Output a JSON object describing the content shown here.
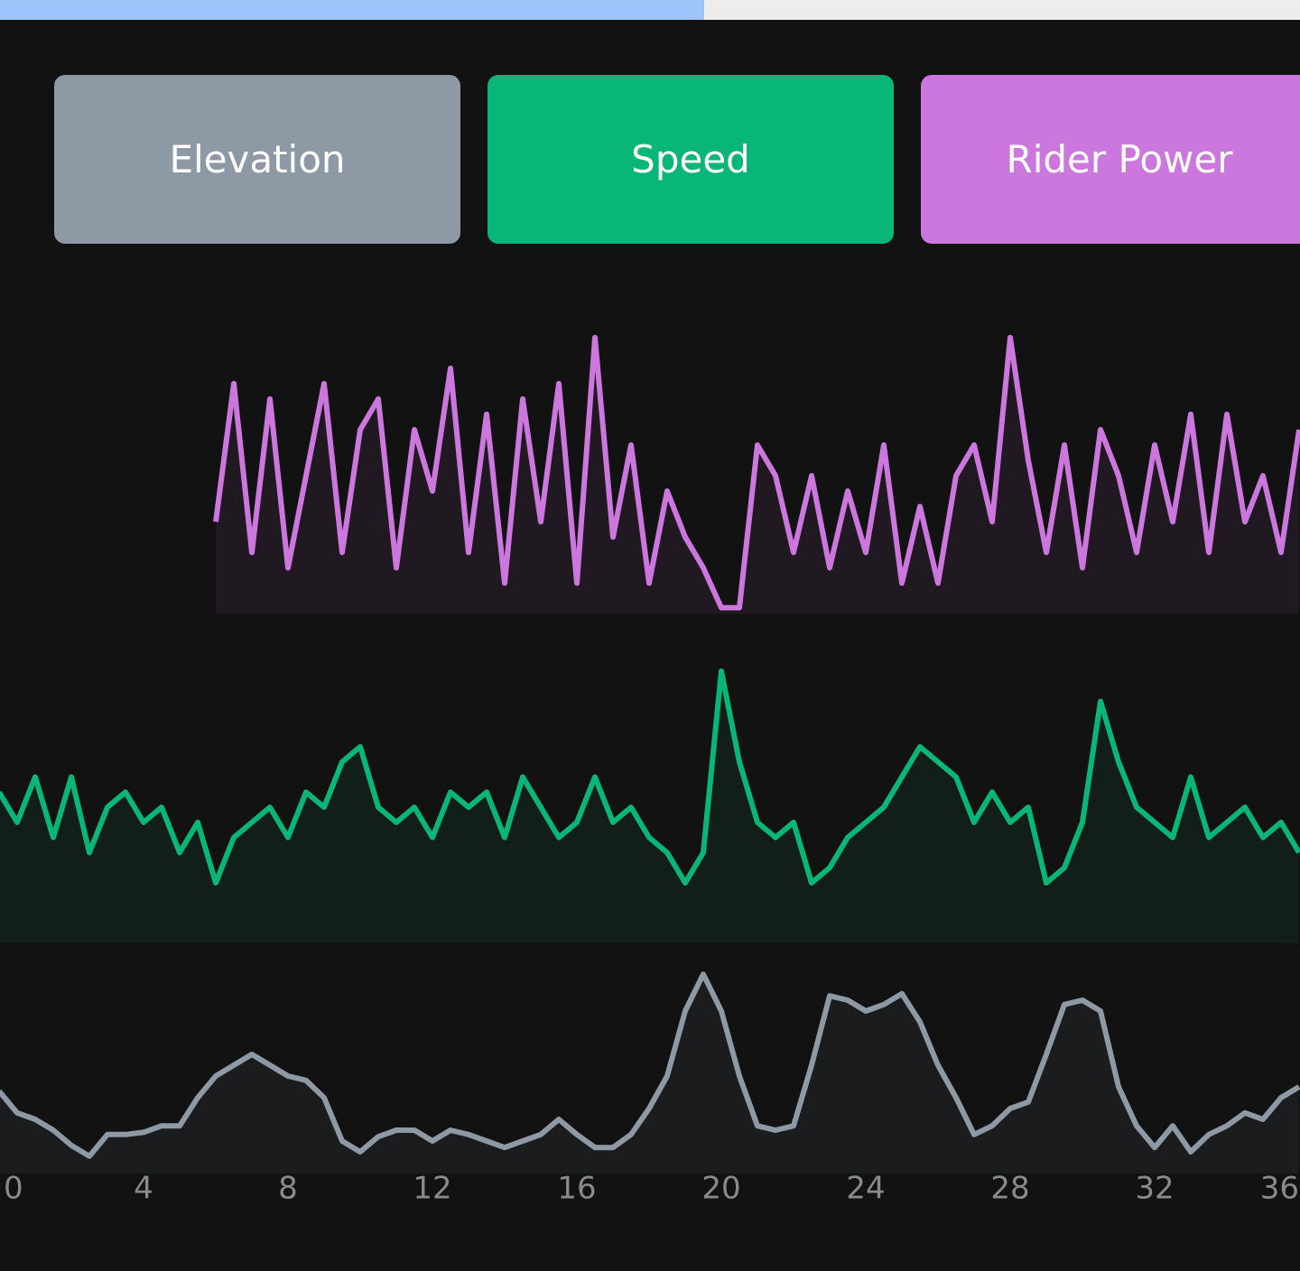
{
  "buttons": [
    "Elevation",
    "Speed",
    "Rider Power"
  ],
  "chart_data": [
    {
      "type": "line",
      "x": [
        0,
        0.5,
        1,
        1.5,
        2,
        2.5,
        3,
        3.5,
        4,
        4.5,
        5,
        5.5,
        6,
        6.5,
        7,
        7.5,
        8,
        8.5,
        9,
        9.5,
        10,
        10.5,
        11,
        11.5,
        12,
        12.5,
        13,
        13.5,
        14,
        14.5,
        15,
        15.5,
        16,
        16.5,
        17,
        17.5,
        18,
        18.5,
        19,
        19.5,
        20,
        20.5,
        21,
        21.5,
        22,
        22.5,
        23,
        23.5,
        24,
        24.5,
        25,
        25.5,
        26,
        26.5,
        27,
        27.5,
        28,
        28.5,
        29,
        29.5,
        30,
        30.5,
        31,
        31.5,
        32,
        32.5,
        33,
        33.5,
        34,
        34.5,
        35,
        35.5,
        36
      ],
      "xlim": [
        0,
        36
      ],
      "ylim": [
        0,
        100
      ],
      "series": [
        {
          "name": "Rider Power",
          "color": "#cc77dd",
          "values": [
            null,
            null,
            null,
            null,
            null,
            null,
            null,
            null,
            null,
            null,
            null,
            null,
            30,
            75,
            20,
            70,
            15,
            45,
            75,
            20,
            60,
            70,
            15,
            60,
            40,
            80,
            20,
            65,
            10,
            70,
            30,
            75,
            10,
            90,
            25,
            55,
            10,
            40,
            25,
            15,
            2,
            2,
            55,
            45,
            20,
            45,
            15,
            40,
            20,
            55,
            10,
            35,
            10,
            45,
            55,
            30,
            90,
            50,
            20,
            55,
            15,
            60,
            45,
            20,
            55,
            30,
            65,
            20,
            65,
            30,
            45,
            20,
            60
          ]
        }
      ]
    },
    {
      "type": "line",
      "x": [
        0,
        0.5,
        1,
        1.5,
        2,
        2.5,
        3,
        3.5,
        4,
        4.5,
        5,
        5.5,
        6,
        6.5,
        7,
        7.5,
        8,
        8.5,
        9,
        9.5,
        10,
        10.5,
        11,
        11.5,
        12,
        12.5,
        13,
        13.5,
        14,
        14.5,
        15,
        15.5,
        16,
        16.5,
        17,
        17.5,
        18,
        18.5,
        19,
        19.5,
        20,
        20.5,
        21,
        21.5,
        22,
        22.5,
        23,
        23.5,
        24,
        24.5,
        25,
        25.5,
        26,
        26.5,
        27,
        27.5,
        28,
        28.5,
        29,
        29.5,
        30,
        30.5,
        31,
        31.5,
        32,
        32.5,
        33,
        33.5,
        34,
        34.5,
        35,
        35.5,
        36
      ],
      "xlim": [
        0,
        36
      ],
      "ylim": [
        0,
        100
      ],
      "series": [
        {
          "name": "Speed",
          "color": "#08b777",
          "values": [
            50,
            40,
            55,
            35,
            55,
            30,
            45,
            50,
            40,
            45,
            30,
            40,
            20,
            35,
            40,
            45,
            35,
            50,
            45,
            60,
            65,
            45,
            40,
            45,
            35,
            50,
            45,
            50,
            35,
            55,
            45,
            35,
            40,
            55,
            40,
            45,
            35,
            30,
            20,
            30,
            90,
            60,
            40,
            35,
            40,
            20,
            25,
            35,
            40,
            45,
            55,
            65,
            60,
            55,
            40,
            50,
            40,
            45,
            20,
            25,
            40,
            80,
            60,
            45,
            40,
            35,
            55,
            35,
            40,
            45,
            35,
            40,
            30
          ]
        }
      ]
    },
    {
      "type": "line",
      "x": [
        0,
        0.5,
        1,
        1.5,
        2,
        2.5,
        3,
        3.5,
        4,
        4.5,
        5,
        5.5,
        6,
        6.5,
        7,
        7.5,
        8,
        8.5,
        9,
        9.5,
        10,
        10.5,
        11,
        11.5,
        12,
        12.5,
        13,
        13.5,
        14,
        14.5,
        15,
        15.5,
        16,
        16.5,
        17,
        17.5,
        18,
        18.5,
        19,
        19.5,
        20,
        20.5,
        21,
        21.5,
        22,
        22.5,
        23,
        23.5,
        24,
        24.5,
        25,
        25.5,
        26,
        26.5,
        27,
        27.5,
        28,
        28.5,
        29,
        29.5,
        30,
        30.5,
        31,
        31.5,
        32,
        32.5,
        33,
        33.5,
        34,
        34.5,
        35,
        35.5,
        36
      ],
      "xlim": [
        0,
        36
      ],
      "ylim": [
        0,
        100
      ],
      "xticks": [
        0,
        4,
        8,
        12,
        16,
        20,
        24,
        28,
        32,
        36
      ],
      "series": [
        {
          "name": "Elevation",
          "color": "#8d9aa5",
          "values": [
            38,
            28,
            25,
            20,
            13,
            8,
            18,
            18,
            19,
            22,
            22,
            35,
            45,
            50,
            55,
            50,
            45,
            43,
            35,
            15,
            10,
            17,
            20,
            20,
            15,
            20,
            18,
            15,
            12,
            15,
            18,
            25,
            18,
            12,
            12,
            18,
            30,
            45,
            75,
            92,
            75,
            45,
            22,
            20,
            22,
            50,
            82,
            80,
            75,
            78,
            83,
            70,
            50,
            35,
            18,
            22,
            30,
            33,
            55,
            78,
            80,
            75,
            40,
            22,
            12,
            22,
            10,
            18,
            22,
            28,
            25,
            35,
            40
          ]
        }
      ]
    }
  ]
}
